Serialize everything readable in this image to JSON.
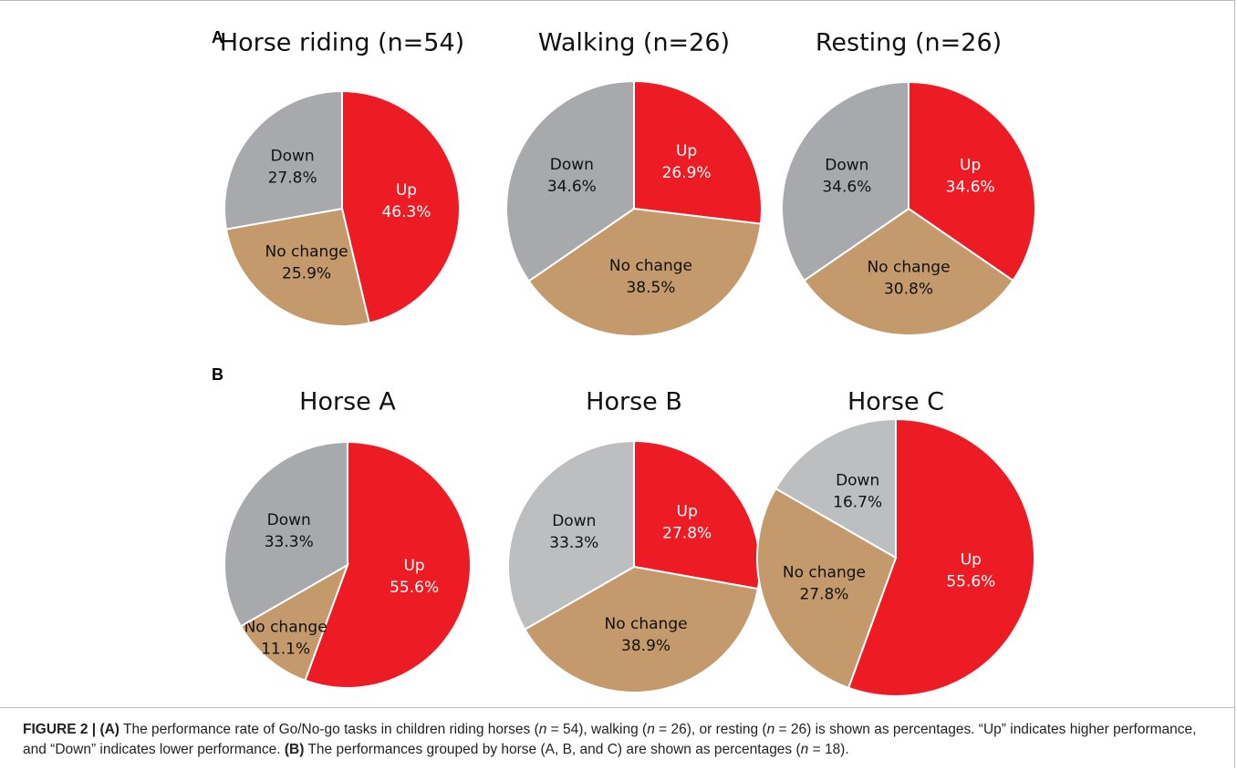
{
  "panels": [
    "A",
    "B"
  ],
  "chart_data": [
    {
      "type": "pie",
      "title": "Horse riding (n=54)",
      "categories": [
        "Up",
        "No change",
        "Down"
      ],
      "values": [
        46.3,
        25.9,
        27.8
      ],
      "value_labels": [
        "46.3%",
        "25.9%",
        "27.8%"
      ],
      "colors": [
        "#ed1c24",
        "#c49a6c",
        "#a7a9ac"
      ]
    },
    {
      "type": "pie",
      "title": "Walking (n=26)",
      "categories": [
        "Up",
        "No change",
        "Down"
      ],
      "values": [
        26.9,
        38.5,
        34.6
      ],
      "value_labels": [
        "26.9%",
        "38.5%",
        "34.6%"
      ],
      "colors": [
        "#ed1c24",
        "#c49a6c",
        "#a7a9ac"
      ]
    },
    {
      "type": "pie",
      "title": "Resting (n=26)",
      "categories": [
        "Up",
        "No change",
        "Down"
      ],
      "values": [
        34.6,
        30.8,
        34.6
      ],
      "value_labels": [
        "34.6%",
        "30.8%",
        "34.6%"
      ],
      "colors": [
        "#ed1c24",
        "#c49a6c",
        "#a7a9ac"
      ]
    },
    {
      "type": "pie",
      "title": "Horse A",
      "categories": [
        "Up",
        "No change",
        "Down"
      ],
      "values": [
        55.6,
        11.1,
        33.3
      ],
      "value_labels": [
        "55.6%",
        "11.1%",
        "33.3%"
      ],
      "colors": [
        "#ed1c24",
        "#c49a6c",
        "#a7a9ac"
      ]
    },
    {
      "type": "pie",
      "title": "Horse B",
      "categories": [
        "Up",
        "No change",
        "Down"
      ],
      "values": [
        27.8,
        38.9,
        33.3
      ],
      "value_labels": [
        "27.8%",
        "38.9%",
        "33.3%"
      ],
      "colors": [
        "#ed1c24",
        "#c49a6c",
        "#bcbec0"
      ]
    },
    {
      "type": "pie",
      "title": "Horse C",
      "categories": [
        "Up",
        "No change",
        "Down"
      ],
      "values": [
        55.6,
        27.8,
        16.7
      ],
      "value_labels": [
        "55.6%",
        "27.8%",
        "16.7%"
      ],
      "colors": [
        "#ed1c24",
        "#c49a6c",
        "#bcbec0"
      ]
    }
  ],
  "caption": [
    {
      "text": "FIGURE 2 | ",
      "bold": true
    },
    {
      "text": "(A)",
      "bold": true
    },
    {
      "text": " The performance rate of Go/No-go tasks in children riding horses ("
    },
    {
      "text": "n",
      "italic": true
    },
    {
      "text": " = 54), walking ("
    },
    {
      "text": "n",
      "italic": true
    },
    {
      "text": " = 26), or resting ("
    },
    {
      "text": "n",
      "italic": true
    },
    {
      "text": " = 26) is shown as percentages. “Up” indicates higher performance, and “Down” indicates lower performance. "
    },
    {
      "text": "(B)",
      "bold": true
    },
    {
      "text": " The performances grouped by horse (A, B, and C) are shown as percentages ("
    },
    {
      "text": "n",
      "italic": true
    },
    {
      "text": " = 18)."
    }
  ]
}
